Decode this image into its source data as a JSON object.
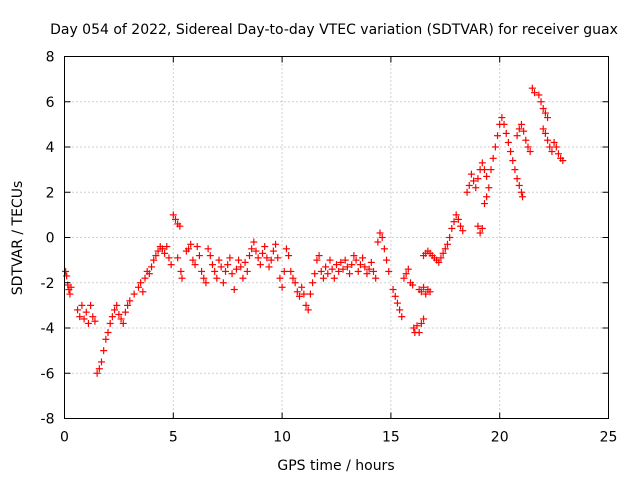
{
  "chart_data": {
    "type": "scatter",
    "title": "Day 054 of 2022, Sidereal Day-to-day VTEC variation (SDTVAR) for receiver guax",
    "xlabel": "GPS time / hours",
    "ylabel": "SDTVAR / TECUs",
    "xlim": [
      0,
      25
    ],
    "ylim": [
      -8,
      8
    ],
    "x_ticks": [
      0,
      5,
      10,
      15,
      20,
      25
    ],
    "x_tick_labels": [
      "0",
      "5",
      "10",
      "15",
      "20",
      "25"
    ],
    "y_ticks": [
      -8,
      -6,
      -4,
      -2,
      0,
      2,
      4,
      6,
      8
    ],
    "y_tick_labels": [
      "-8",
      "-6",
      "-4",
      "-2",
      "0",
      "2",
      "4",
      "6",
      "8"
    ],
    "grid": true,
    "marker": "+",
    "color": "#ff0000",
    "series": [
      {
        "name": "SDTVAR",
        "points": [
          [
            0.05,
            -1.5
          ],
          [
            0.1,
            -1.7
          ],
          [
            0.15,
            -2.1
          ],
          [
            0.2,
            -2.3
          ],
          [
            0.25,
            -2.5
          ],
          [
            0.3,
            -2.2
          ],
          [
            0.6,
            -3.2
          ],
          [
            0.7,
            -3.5
          ],
          [
            0.8,
            -3.0
          ],
          [
            0.9,
            -3.6
          ],
          [
            1.0,
            -3.3
          ],
          [
            1.1,
            -3.8
          ],
          [
            1.2,
            -3.0
          ],
          [
            1.3,
            -3.5
          ],
          [
            1.4,
            -3.7
          ],
          [
            1.5,
            -6.0
          ],
          [
            1.6,
            -5.8
          ],
          [
            1.7,
            -5.5
          ],
          [
            1.8,
            -5.0
          ],
          [
            1.9,
            -4.5
          ],
          [
            2.0,
            -4.2
          ],
          [
            2.1,
            -3.8
          ],
          [
            2.2,
            -3.5
          ],
          [
            2.3,
            -3.2
          ],
          [
            2.4,
            -3.0
          ],
          [
            2.5,
            -3.4
          ],
          [
            2.6,
            -3.6
          ],
          [
            2.7,
            -3.8
          ],
          [
            2.8,
            -3.3
          ],
          [
            2.9,
            -3.0
          ],
          [
            3.0,
            -2.8
          ],
          [
            3.2,
            -2.5
          ],
          [
            3.4,
            -2.2
          ],
          [
            3.5,
            -2.0
          ],
          [
            3.6,
            -2.4
          ],
          [
            3.7,
            -1.8
          ],
          [
            3.8,
            -1.5
          ],
          [
            3.9,
            -1.6
          ],
          [
            4.0,
            -1.3
          ],
          [
            4.1,
            -1.0
          ],
          [
            4.2,
            -0.8
          ],
          [
            4.3,
            -0.6
          ],
          [
            4.4,
            -0.4
          ],
          [
            4.5,
            -0.5
          ],
          [
            4.6,
            -0.7
          ],
          [
            4.7,
            -0.4
          ],
          [
            4.8,
            -0.9
          ],
          [
            4.9,
            -1.2
          ],
          [
            5.0,
            1.0
          ],
          [
            5.1,
            0.8
          ],
          [
            5.2,
            0.6
          ],
          [
            5.3,
            0.5
          ],
          [
            5.2,
            -0.9
          ],
          [
            5.35,
            -1.5
          ],
          [
            5.4,
            -1.8
          ],
          [
            5.6,
            -0.6
          ],
          [
            5.7,
            -0.5
          ],
          [
            5.8,
            -0.3
          ],
          [
            5.9,
            -1.0
          ],
          [
            6.0,
            -1.2
          ],
          [
            6.1,
            -0.4
          ],
          [
            6.2,
            -0.8
          ],
          [
            6.3,
            -1.5
          ],
          [
            6.4,
            -1.8
          ],
          [
            6.5,
            -2.0
          ],
          [
            6.6,
            -0.5
          ],
          [
            6.7,
            -0.8
          ],
          [
            6.8,
            -1.2
          ],
          [
            6.9,
            -1.5
          ],
          [
            7.0,
            -1.8
          ],
          [
            7.1,
            -1.0
          ],
          [
            7.2,
            -1.3
          ],
          [
            7.3,
            -2.0
          ],
          [
            7.4,
            -1.5
          ],
          [
            7.5,
            -1.2
          ],
          [
            7.6,
            -0.9
          ],
          [
            7.7,
            -1.6
          ],
          [
            7.8,
            -2.3
          ],
          [
            7.9,
            -1.4
          ],
          [
            8.0,
            -1.0
          ],
          [
            8.1,
            -1.3
          ],
          [
            8.2,
            -1.8
          ],
          [
            8.3,
            -1.1
          ],
          [
            8.4,
            -1.5
          ],
          [
            8.5,
            -0.8
          ],
          [
            8.6,
            -0.5
          ],
          [
            8.7,
            -0.2
          ],
          [
            8.8,
            -0.6
          ],
          [
            8.9,
            -0.9
          ],
          [
            9.0,
            -1.2
          ],
          [
            9.1,
            -0.7
          ],
          [
            9.2,
            -0.4
          ],
          [
            9.3,
            -0.9
          ],
          [
            9.4,
            -1.3
          ],
          [
            9.5,
            -1.0
          ],
          [
            9.6,
            -0.6
          ],
          [
            9.7,
            -0.3
          ],
          [
            9.8,
            -0.9
          ],
          [
            9.9,
            -1.8
          ],
          [
            10.0,
            -2.2
          ],
          [
            10.1,
            -1.5
          ],
          [
            10.2,
            -0.5
          ],
          [
            10.3,
            -0.8
          ],
          [
            10.4,
            -1.5
          ],
          [
            10.5,
            -1.8
          ],
          [
            10.6,
            -2.0
          ],
          [
            10.7,
            -2.4
          ],
          [
            10.8,
            -2.6
          ],
          [
            10.9,
            -2.2
          ],
          [
            11.0,
            -2.5
          ],
          [
            11.1,
            -3.0
          ],
          [
            11.2,
            -3.2
          ],
          [
            11.3,
            -2.5
          ],
          [
            11.4,
            -2.0
          ],
          [
            11.5,
            -1.6
          ],
          [
            11.6,
            -1.0
          ],
          [
            11.7,
            -0.8
          ],
          [
            11.8,
            -1.5
          ],
          [
            11.9,
            -1.8
          ],
          [
            12.0,
            -1.3
          ],
          [
            12.1,
            -1.6
          ],
          [
            12.2,
            -1.0
          ],
          [
            12.3,
            -1.4
          ],
          [
            12.4,
            -1.8
          ],
          [
            12.5,
            -1.2
          ],
          [
            12.6,
            -1.5
          ],
          [
            12.7,
            -1.1
          ],
          [
            12.8,
            -1.4
          ],
          [
            12.9,
            -1.0
          ],
          [
            13.0,
            -1.3
          ],
          [
            13.1,
            -1.6
          ],
          [
            13.2,
            -1.2
          ],
          [
            13.3,
            -0.8
          ],
          [
            13.4,
            -1.0
          ],
          [
            13.5,
            -1.5
          ],
          [
            13.6,
            -1.2
          ],
          [
            13.7,
            -0.9
          ],
          [
            13.8,
            -1.3
          ],
          [
            13.9,
            -1.6
          ],
          [
            14.0,
            -1.4
          ],
          [
            14.1,
            -1.1
          ],
          [
            14.2,
            -1.5
          ],
          [
            14.3,
            -1.8
          ],
          [
            14.4,
            -0.2
          ],
          [
            14.5,
            0.2
          ],
          [
            14.6,
            0.0
          ],
          [
            14.7,
            -0.5
          ],
          [
            14.8,
            -1.0
          ],
          [
            14.9,
            -1.5
          ],
          [
            15.1,
            -2.3
          ],
          [
            15.2,
            -2.6
          ],
          [
            15.3,
            -2.9
          ],
          [
            15.4,
            -3.2
          ],
          [
            15.5,
            -3.5
          ],
          [
            15.6,
            -1.8
          ],
          [
            15.7,
            -1.6
          ],
          [
            15.8,
            -1.4
          ],
          [
            15.9,
            -2.0
          ],
          [
            16.0,
            -2.1
          ],
          [
            16.05,
            -4.0
          ],
          [
            16.1,
            -4.2
          ],
          [
            16.2,
            -3.9
          ],
          [
            16.3,
            -4.2
          ],
          [
            16.4,
            -3.8
          ],
          [
            16.5,
            -3.6
          ],
          [
            16.3,
            -2.3
          ],
          [
            16.4,
            -2.4
          ],
          [
            16.5,
            -2.2
          ],
          [
            16.6,
            -2.5
          ],
          [
            16.7,
            -2.3
          ],
          [
            16.8,
            -2.4
          ],
          [
            16.5,
            -0.8
          ],
          [
            16.6,
            -0.7
          ],
          [
            16.7,
            -0.6
          ],
          [
            16.8,
            -0.7
          ],
          [
            16.9,
            -0.8
          ],
          [
            17.0,
            -0.9
          ],
          [
            17.1,
            -1.0
          ],
          [
            17.2,
            -1.1
          ],
          [
            17.3,
            -0.9
          ],
          [
            17.4,
            -0.7
          ],
          [
            17.5,
            -0.5
          ],
          [
            17.6,
            -0.3
          ],
          [
            17.7,
            0.0
          ],
          [
            17.8,
            0.4
          ],
          [
            17.9,
            0.7
          ],
          [
            18.0,
            1.0
          ],
          [
            18.1,
            0.8
          ],
          [
            18.2,
            0.5
          ],
          [
            18.3,
            0.3
          ],
          [
            18.5,
            2.0
          ],
          [
            18.6,
            2.3
          ],
          [
            18.7,
            2.8
          ],
          [
            18.8,
            2.5
          ],
          [
            18.9,
            2.2
          ],
          [
            19.0,
            2.6
          ],
          [
            19.1,
            3.0
          ],
          [
            19.2,
            3.3
          ],
          [
            19.3,
            3.0
          ],
          [
            19.4,
            2.7
          ],
          [
            19.0,
            0.5
          ],
          [
            19.1,
            0.2
          ],
          [
            19.2,
            0.4
          ],
          [
            19.3,
            1.5
          ],
          [
            19.4,
            1.8
          ],
          [
            19.5,
            2.2
          ],
          [
            19.6,
            3.0
          ],
          [
            19.7,
            3.5
          ],
          [
            19.8,
            4.0
          ],
          [
            19.9,
            4.5
          ],
          [
            20.0,
            5.0
          ],
          [
            20.1,
            5.3
          ],
          [
            20.2,
            5.0
          ],
          [
            20.3,
            4.6
          ],
          [
            20.4,
            4.2
          ],
          [
            20.5,
            3.8
          ],
          [
            20.6,
            3.4
          ],
          [
            20.7,
            3.0
          ],
          [
            20.8,
            2.6
          ],
          [
            20.9,
            2.3
          ],
          [
            21.0,
            2.0
          ],
          [
            21.05,
            1.8
          ],
          [
            20.8,
            4.5
          ],
          [
            20.9,
            4.8
          ],
          [
            21.0,
            5.0
          ],
          [
            21.1,
            4.7
          ],
          [
            21.2,
            4.3
          ],
          [
            21.3,
            4.0
          ],
          [
            21.4,
            3.8
          ],
          [
            21.5,
            6.6
          ],
          [
            21.6,
            6.4
          ],
          [
            21.8,
            6.3
          ],
          [
            21.9,
            6.0
          ],
          [
            22.0,
            5.7
          ],
          [
            22.1,
            5.5
          ],
          [
            22.2,
            5.3
          ],
          [
            22.0,
            4.8
          ],
          [
            22.1,
            4.6
          ],
          [
            22.2,
            4.3
          ],
          [
            22.3,
            4.0
          ],
          [
            22.4,
            3.8
          ],
          [
            22.5,
            4.2
          ],
          [
            22.6,
            4.0
          ],
          [
            22.7,
            3.7
          ],
          [
            22.8,
            3.5
          ],
          [
            22.9,
            3.4
          ]
        ]
      }
    ]
  }
}
